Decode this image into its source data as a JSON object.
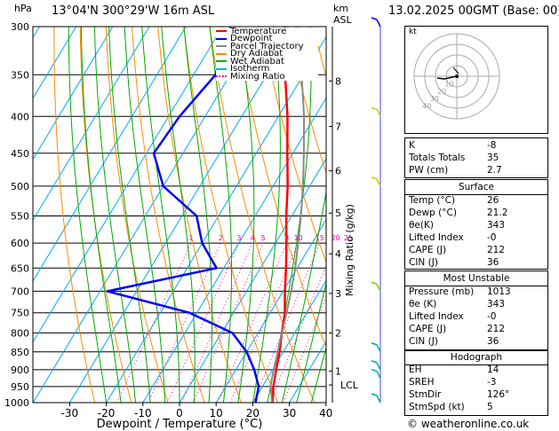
{
  "header": {
    "hpa_label": "hPa",
    "location": "13°04'N  300°29'W  16m  ASL",
    "km_label": "km",
    "asl_label": "ASL",
    "datetime": "13.02.2025  00GMT  (Base: 00)"
  },
  "legend": [
    {
      "label": "Temperature",
      "color": "#ff0000",
      "style": "solid"
    },
    {
      "label": "Dewpoint",
      "color": "#0000ff",
      "style": "solid"
    },
    {
      "label": "Parcel Trajectory",
      "color": "#888888",
      "style": "solid"
    },
    {
      "label": "Dry Adiabat",
      "color": "#ff8c00",
      "style": "solid"
    },
    {
      "label": "Wet Adiabat",
      "color": "#00aa00",
      "style": "solid"
    },
    {
      "label": "Isotherm",
      "color": "#00aaff",
      "style": "solid"
    },
    {
      "label": "Mixing Ratio",
      "color": "#ff00aa",
      "style": "dotted"
    }
  ],
  "chart_data": {
    "type": "line",
    "subtype": "skew-t log-p",
    "xlabel": "Dewpoint / Temperature (°C)",
    "ylabel_right": "Mixing Ratio (g/kg)",
    "x_ticks": [
      -30,
      -20,
      -10,
      0,
      10,
      20,
      30,
      40
    ],
    "pressure_ticks": [
      300,
      350,
      400,
      450,
      500,
      550,
      600,
      650,
      700,
      750,
      800,
      850,
      900,
      950,
      1000
    ],
    "km_ticks": [
      {
        "km": 1,
        "p": 904
      },
      {
        "km": 2,
        "p": 800
      },
      {
        "km": 3,
        "p": 705
      },
      {
        "km": 4,
        "p": 621
      },
      {
        "km": 5,
        "p": 545
      },
      {
        "km": 6,
        "p": 476
      },
      {
        "km": 7,
        "p": 413
      },
      {
        "km": 8,
        "p": 357
      }
    ],
    "lcl": {
      "label": "LCL",
      "p": 945
    },
    "mixing_ratio_labels": [
      "1",
      "2",
      "3",
      "4",
      "5",
      "8",
      "10",
      "15",
      "20",
      "25"
    ],
    "series": [
      {
        "name": "Temperature",
        "color": "#ff0000",
        "points": [
          [
            1013,
            26
          ],
          [
            950,
            23
          ],
          [
            900,
            21
          ],
          [
            850,
            19
          ],
          [
            800,
            16.5
          ],
          [
            750,
            14
          ],
          [
            700,
            10.5
          ],
          [
            650,
            7
          ],
          [
            600,
            3
          ],
          [
            550,
            -1.5
          ],
          [
            500,
            -6
          ],
          [
            450,
            -11.5
          ],
          [
            400,
            -17.5
          ],
          [
            350,
            -25
          ],
          [
            300,
            -33
          ]
        ]
      },
      {
        "name": "Dewpoint",
        "color": "#0000ff",
        "points": [
          [
            1013,
            21.2
          ],
          [
            950,
            19
          ],
          [
            900,
            15
          ],
          [
            850,
            10
          ],
          [
            800,
            3
          ],
          [
            750,
            -12
          ],
          [
            700,
            -38
          ],
          [
            650,
            -12
          ],
          [
            600,
            -20
          ],
          [
            550,
            -26
          ],
          [
            500,
            -40
          ],
          [
            450,
            -48
          ],
          [
            400,
            -47
          ],
          [
            350,
            -44
          ],
          [
            300,
            -48
          ]
        ]
      },
      {
        "name": "Parcel Trajectory",
        "color": "#888888",
        "points": [
          [
            1013,
            26
          ],
          [
            945,
            22
          ],
          [
            900,
            20.3
          ],
          [
            850,
            18.5
          ],
          [
            800,
            16.5
          ],
          [
            750,
            14.5
          ],
          [
            700,
            12.2
          ],
          [
            650,
            9.5
          ],
          [
            600,
            6.2
          ],
          [
            550,
            2.5
          ],
          [
            500,
            -1.8
          ],
          [
            450,
            -7
          ],
          [
            400,
            -13
          ],
          [
            350,
            -20.5
          ],
          [
            300,
            -29.5
          ]
        ]
      }
    ],
    "wind_barbs": [
      {
        "p": 300,
        "color": "#0000ff"
      },
      {
        "p": 400,
        "color": "#cccc00"
      },
      {
        "p": 500,
        "color": "#cccc00"
      },
      {
        "p": 700,
        "color": "#88cc00"
      },
      {
        "p": 850,
        "color": "#00aaaa"
      },
      {
        "p": 900,
        "color": "#00aaaa"
      },
      {
        "p": 925,
        "color": "#00aaaa"
      },
      {
        "p": 1000,
        "color": "#00aaaa"
      }
    ]
  },
  "hodograph": {
    "unit_label": "kt",
    "ring_labels": [
      "10",
      "20",
      "30",
      "40"
    ]
  },
  "indices_top": [
    {
      "label": "K",
      "value": "-8"
    },
    {
      "label": "Totals Totals",
      "value": "35"
    },
    {
      "label": "PW (cm)",
      "value": "2.7"
    }
  ],
  "surface": {
    "title": "Surface",
    "rows": [
      {
        "label": "Temp (°C)",
        "value": "26"
      },
      {
        "label": "Dewp (°C)",
        "value": "21.2"
      },
      {
        "label": "θe(K)",
        "value": "343"
      },
      {
        "label": "Lifted Index",
        "value": "-0"
      },
      {
        "label": "CAPE (J)",
        "value": "212"
      },
      {
        "label": "CIN (J)",
        "value": "36"
      }
    ]
  },
  "most_unstable": {
    "title": "Most Unstable",
    "rows": [
      {
        "label": "Pressure (mb)",
        "value": "1013"
      },
      {
        "label": "θe (K)",
        "value": "343"
      },
      {
        "label": "Lifted Index",
        "value": "-0"
      },
      {
        "label": "CAPE (J)",
        "value": "212"
      },
      {
        "label": "CIN (J)",
        "value": "36"
      }
    ]
  },
  "hodograph_table": {
    "title": "Hodograph",
    "rows": [
      {
        "label": "EH",
        "value": "14"
      },
      {
        "label": "SREH",
        "value": "-3"
      },
      {
        "label": "StmDir",
        "value": "126°"
      },
      {
        "label": "StmSpd (kt)",
        "value": "5"
      }
    ]
  },
  "footer": {
    "copyright": "© weatheronline.co.uk"
  }
}
